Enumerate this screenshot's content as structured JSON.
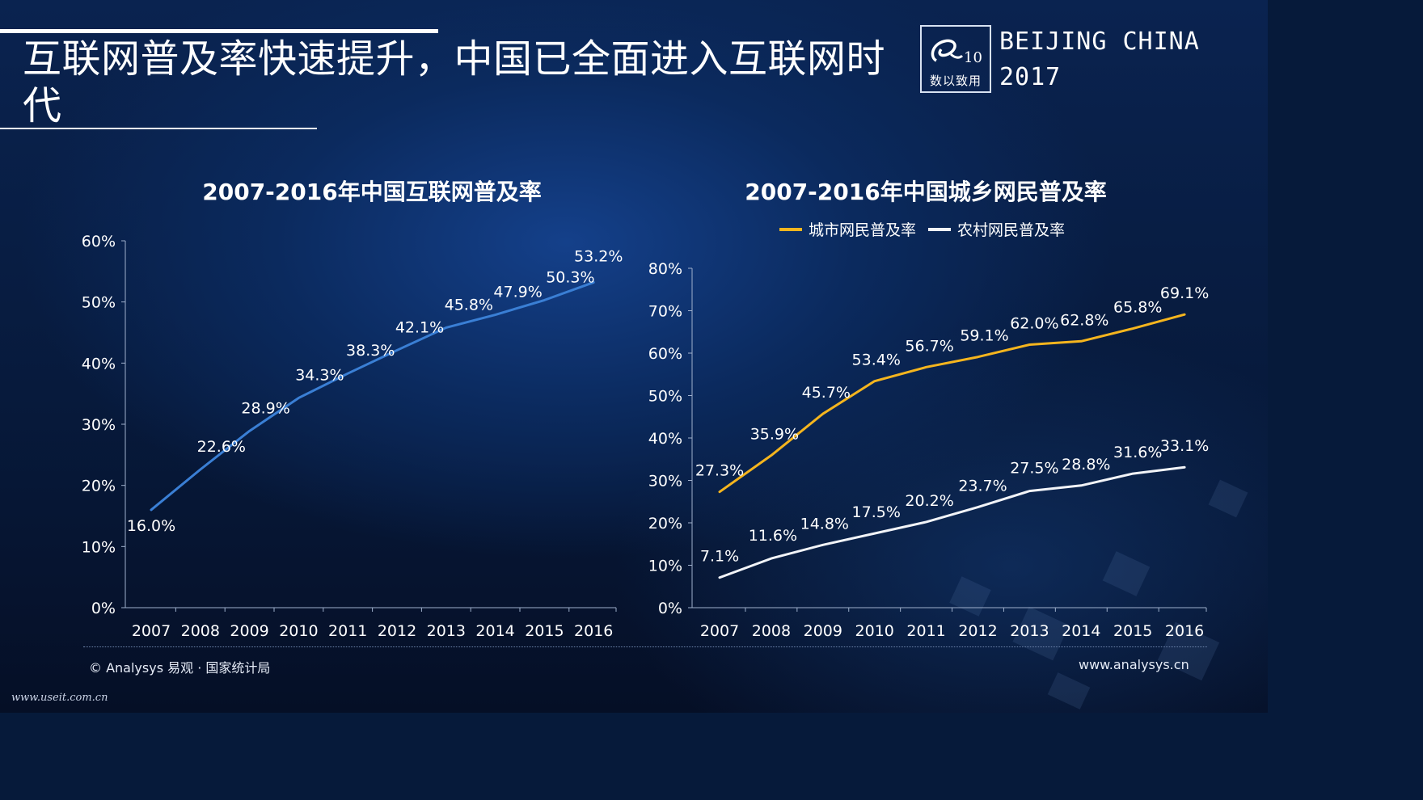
{
  "page": {
    "title": "互联网普及率快速提升，中国已全面进入互联网时代",
    "event_line1": "BEIJING CHINA",
    "event_line2": "2017",
    "logo_text": "数以致用",
    "source": "© Analysys 易观 · 国家统计局",
    "site": "www.analysys.cn",
    "watermark": "www.useit.com.cn",
    "colors": {
      "blue_line": "#3a7fd5",
      "urban_line": "#f5b51e",
      "rural_line": "#f2f4f8"
    }
  },
  "chart_data": [
    {
      "type": "line",
      "title": "2007-2016年中国互联网普及率",
      "categories": [
        "2007",
        "2008",
        "2009",
        "2010",
        "2011",
        "2012",
        "2013",
        "2014",
        "2015",
        "2016"
      ],
      "series": [
        {
          "values": [
            16.0,
            22.6,
            28.9,
            34.3,
            38.3,
            42.1,
            45.8,
            47.9,
            50.3,
            53.2
          ],
          "labels": [
            "16.0%",
            "22.6%",
            "28.9%",
            "34.3%",
            "38.3%",
            "42.1%",
            "45.8%",
            "47.9%",
            "50.3%",
            "53.2%"
          ]
        }
      ],
      "ylim": [
        0,
        60
      ],
      "yticks": [
        0,
        10,
        20,
        30,
        40,
        50,
        60
      ],
      "ytick_labels": [
        "0%",
        "10%",
        "20%",
        "30%",
        "40%",
        "50%",
        "60%"
      ],
      "grid": false,
      "legend": "none"
    },
    {
      "type": "line",
      "title": "2007-2016年中国城乡网民普及率",
      "categories": [
        "2007",
        "2008",
        "2009",
        "2010",
        "2011",
        "2012",
        "2013",
        "2014",
        "2015",
        "2016"
      ],
      "series": [
        {
          "name": "城市网民普及率",
          "values": [
            27.3,
            35.9,
            45.7,
            53.4,
            56.7,
            59.1,
            62.0,
            62.8,
            65.8,
            69.1
          ],
          "labels": [
            "27.3%",
            "35.9%",
            "45.7%",
            "53.4%",
            "56.7%",
            "59.1%",
            "62.0%",
            "62.8%",
            "65.8%",
            "69.1%"
          ]
        },
        {
          "name": "农村网民普及率",
          "values": [
            7.1,
            11.6,
            14.8,
            17.5,
            20.2,
            23.7,
            27.5,
            28.8,
            31.6,
            33.1
          ],
          "labels": [
            "7.1%",
            "11.6%",
            "14.8%",
            "17.5%",
            "20.2%",
            "23.7%",
            "27.5%",
            "28.8%",
            "31.6%",
            "33.1%"
          ]
        }
      ],
      "ylim": [
        0,
        80
      ],
      "yticks": [
        0,
        10,
        20,
        30,
        40,
        50,
        60,
        70,
        80
      ],
      "ytick_labels": [
        "0%",
        "10%",
        "20%",
        "30%",
        "40%",
        "50%",
        "60%",
        "70%",
        "80%"
      ],
      "grid": false,
      "legend": "top"
    }
  ]
}
